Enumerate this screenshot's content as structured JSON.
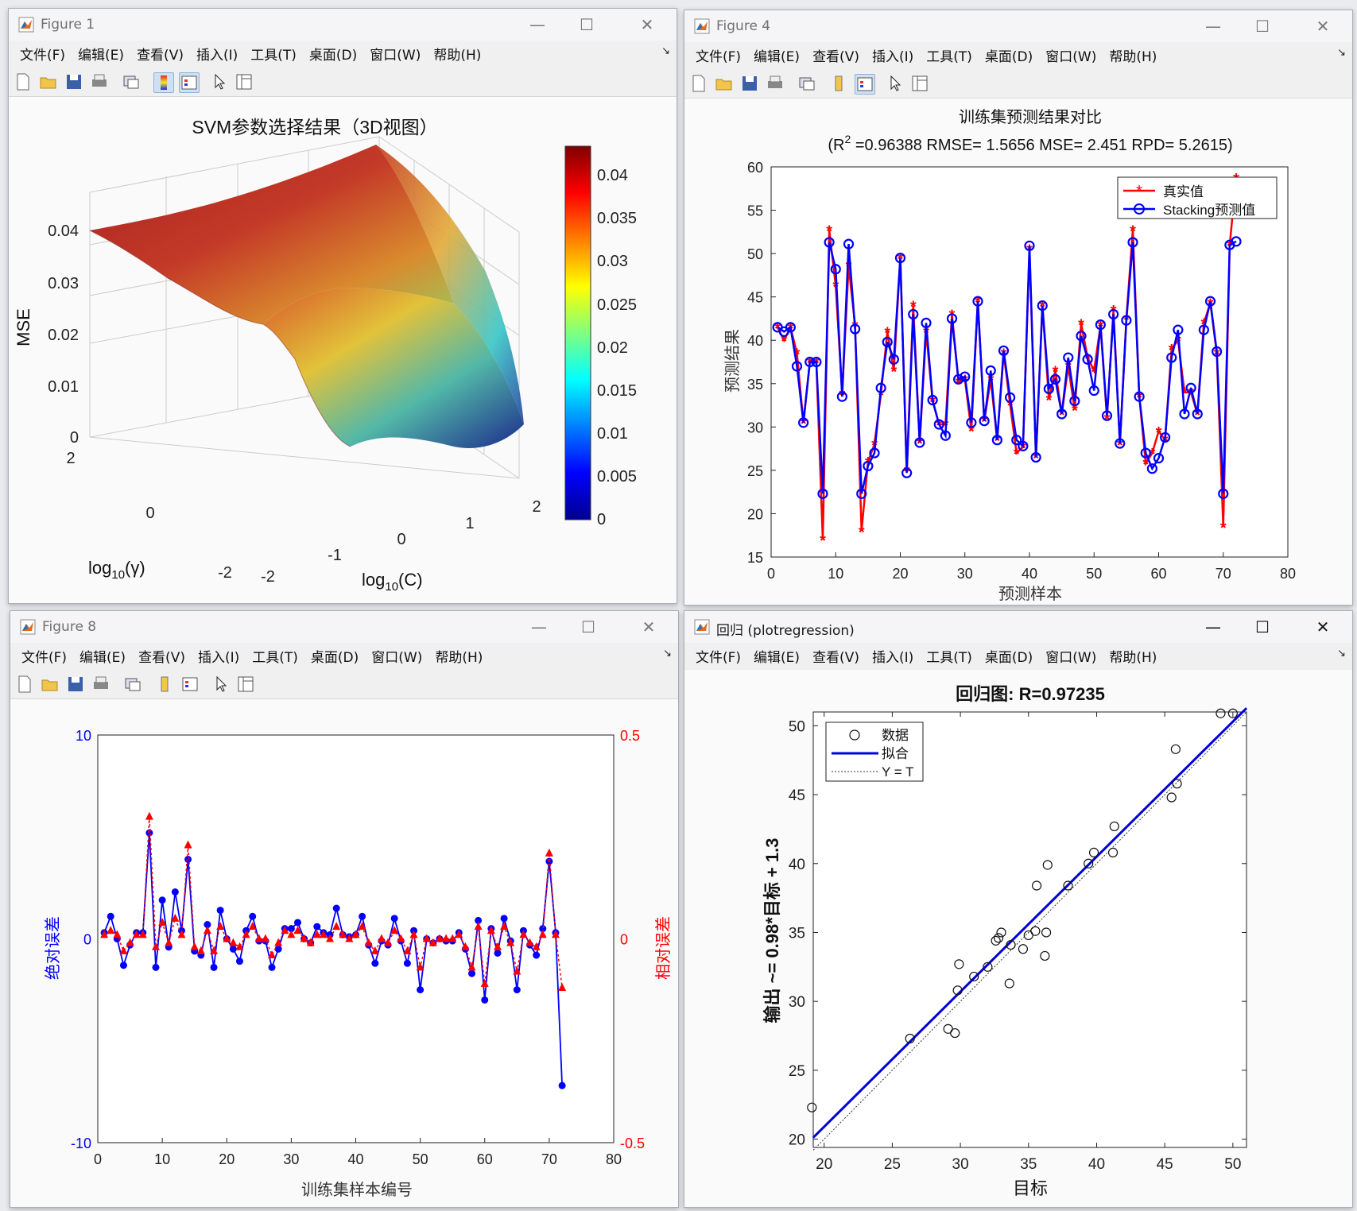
{
  "menu": [
    "文件(F)",
    "编辑(E)",
    "查看(V)",
    "插入(I)",
    "工具(T)",
    "桌面(D)",
    "窗口(W)",
    "帮助(H)"
  ],
  "fig1": {
    "title": "Figure 1",
    "chart_title": "SVM参数选择结果（3D视图）",
    "zlabel": "MSE",
    "xlabel_base": "log",
    "xlabel_sub": "10",
    "xlabel_arg": "(C)",
    "ylabel_base": "log",
    "ylabel_sub": "10",
    "ylabel_arg": "(γ)",
    "z_ticks": [
      "0",
      "0.01",
      "0.02",
      "0.03",
      "0.04"
    ],
    "x_ticks": [
      "-2",
      "-1",
      "0",
      "1",
      "2"
    ],
    "y_ticks": [
      "2",
      "0",
      "-2"
    ],
    "colorbar_ticks": [
      "0.04",
      "0.035",
      "0.03",
      "0.025",
      "0.02",
      "0.015",
      "0.01",
      "0.005",
      "0"
    ]
  },
  "fig4": {
    "title": "Figure 4",
    "chart_title": "训练集预测结果对比",
    "subtitle_pre": "(R",
    "subtitle_sup": "2",
    "subtitle_post": " =0.96388 RMSE= 1.5656 MSE= 2.451 RPD= 5.2615)",
    "xlabel": "预测样本",
    "ylabel": "预测结果",
    "legend": [
      "真实值",
      "Stacking预测值"
    ]
  },
  "fig8": {
    "title": "Figure 8",
    "xlabel": "训练集样本编号",
    "ylabel_left": "绝对误差",
    "ylabel_right": "相对误差"
  },
  "fig_reg": {
    "title": "回归 (plotregression)",
    "chart_title": "回归图: R=0.97235",
    "xlabel": "目标",
    "ylabel": "输出 ~= 0.98*目标 + 1.3",
    "legend": [
      "数据",
      "拟合",
      "Y = T"
    ]
  },
  "chart_data": [
    {
      "type": "surface",
      "title": "SVM参数选择结果（3D视图）",
      "xlabel": "log10(C)",
      "ylabel": "log10(γ)",
      "zlabel": "MSE",
      "xlim": [
        -2,
        2
      ],
      "ylim": [
        -2,
        2
      ],
      "zlim": [
        0,
        0.04
      ],
      "colorbar_range": [
        0,
        0.043
      ]
    },
    {
      "type": "line",
      "title": "训练集预测结果对比",
      "xlabel": "预测样本",
      "ylabel": "预测结果",
      "xlim": [
        0,
        80
      ],
      "ylim": [
        15,
        60
      ],
      "x_ticks": [
        0,
        10,
        20,
        30,
        40,
        50,
        60,
        70,
        80
      ],
      "y_ticks": [
        15,
        20,
        25,
        30,
        35,
        40,
        45,
        50,
        55,
        60
      ],
      "legend_position": "top-right",
      "series": [
        {
          "name": "真实值",
          "color": "#ff0000",
          "marker": "*",
          "values": [
            41.5,
            40.0,
            41.5,
            38.5,
            30.5,
            37.5,
            37.5,
            17.0,
            52.7,
            46.3,
            33.8,
            48.6,
            41.7,
            18.0,
            26.0,
            28.0,
            33.8,
            41.0,
            36.5,
            49.5,
            25.0,
            44.0,
            28.2,
            41.0,
            33.0,
            30.3,
            30.3,
            43.0,
            35.2,
            35.5,
            29.6,
            44.5,
            30.7,
            35.5,
            28.5,
            38.5,
            32.6,
            27.0,
            27.7,
            50.5,
            26.5,
            44.0,
            33.2,
            36.5,
            31.5,
            37.0,
            32.0,
            41.9,
            38.0,
            36.5,
            41.7,
            31.0,
            43.5,
            28.0,
            42.5,
            52.7,
            33.5,
            25.8,
            27.0,
            29.5,
            28.5,
            39.0,
            40.0,
            34.0,
            34.0,
            31.5,
            42.0,
            44.3,
            38.5,
            18.5,
            51.0,
            58.7
          ]
        },
        {
          "name": "Stacking预测值",
          "color": "#0000ff",
          "marker": "o",
          "values": [
            41.5,
            41.0,
            41.5,
            37.0,
            30.5,
            37.5,
            37.5,
            22.3,
            51.3,
            48.2,
            33.5,
            51.1,
            41.3,
            22.3,
            25.5,
            27.0,
            34.5,
            39.8,
            37.8,
            49.5,
            24.7,
            43.0,
            28.2,
            42.0,
            33.1,
            30.3,
            29.0,
            42.5,
            35.5,
            35.8,
            30.5,
            44.5,
            30.7,
            36.5,
            28.5,
            38.8,
            33.4,
            28.5,
            27.8,
            50.9,
            26.5,
            44.0,
            34.4,
            35.5,
            31.5,
            38.0,
            33.0,
            40.5,
            37.8,
            34.2,
            41.8,
            31.3,
            43.0,
            28.1,
            42.3,
            51.3,
            33.5,
            27.0,
            25.2,
            26.4,
            28.8,
            38.0,
            41.2,
            31.5,
            34.5,
            31.5,
            41.2,
            44.5,
            38.7,
            22.3,
            51.0,
            51.4
          ]
        }
      ]
    },
    {
      "type": "line",
      "xlabel": "训练集样本编号",
      "ylabel": "绝对误差",
      "ylabel_right": "相对误差",
      "xlim": [
        0,
        80
      ],
      "ylim": [
        -10,
        10
      ],
      "ylim_right": [
        -0.5,
        0.5
      ],
      "x_ticks": [
        0,
        10,
        20,
        30,
        40,
        50,
        60,
        70,
        80
      ],
      "y_ticks": [
        -10,
        0,
        10
      ],
      "y_ticks_right": [
        -0.5,
        0,
        0.5
      ],
      "series": [
        {
          "axis": "left",
          "color": "#0000ff",
          "marker": "o",
          "values": [
            0.3,
            1.1,
            0,
            -1.3,
            -0.3,
            0.3,
            0.3,
            5.2,
            -1.4,
            1.9,
            -0.4,
            2.3,
            0.4,
            3.9,
            -0.6,
            -0.8,
            0.7,
            -1.4,
            1.4,
            0,
            -0.5,
            -1.1,
            0.4,
            1.1,
            -0.1,
            -0.1,
            -1.4,
            -0.5,
            0.5,
            0.5,
            0.8,
            0,
            -0.2,
            0.6,
            0.3,
            0.2,
            1.5,
            0.2,
            0.1,
            0.2,
            1.1,
            -0.3,
            -1.2,
            -0.1,
            -0.3,
            1.0,
            -0.1,
            -1.2,
            0.4,
            -2.5,
            0,
            -0.2,
            0,
            -0.1,
            -0.1,
            0.3,
            -0.5,
            -1.7,
            0.9,
            -3.0,
            0.5,
            -0.7,
            1.0,
            -0.1,
            -2.5,
            0.4,
            -0.3,
            -0.8,
            0.5,
            3.8,
            0.3,
            -7.2
          ]
        },
        {
          "axis": "right",
          "color": "#ff0000",
          "marker": "^",
          "values": [
            0.01,
            0.02,
            0.01,
            -0.03,
            -0.01,
            0.01,
            0.01,
            0.3,
            -0.02,
            0.04,
            -0.01,
            0.05,
            0.01,
            0.23,
            -0.02,
            -0.03,
            0.02,
            -0.03,
            0.03,
            0,
            -0.01,
            -0.02,
            0.01,
            0.03,
            0,
            0,
            -0.04,
            -0.01,
            0.02,
            0.01,
            0.02,
            0,
            -0.01,
            0.01,
            0.01,
            0,
            0.03,
            0.01,
            0,
            0.01,
            0.03,
            -0.01,
            -0.03,
            0,
            -0.01,
            0.02,
            0,
            -0.03,
            0.01,
            -0.07,
            0,
            -0.01,
            0,
            0,
            0,
            0.01,
            -0.02,
            -0.07,
            0.03,
            -0.11,
            0.02,
            -0.02,
            0.03,
            -0.01,
            -0.08,
            0.01,
            -0.01,
            -0.02,
            0.01,
            0.21,
            0.01,
            -0.12
          ]
        }
      ]
    },
    {
      "type": "scatter",
      "title": "回归图: R=0.97235",
      "xlabel": "目标",
      "ylabel": "输出 ~= 0.98*目标 + 1.3",
      "xlim": [
        19.2,
        51
      ],
      "ylim": [
        19.4,
        51
      ],
      "x_ticks": [
        20,
        25,
        30,
        35,
        40,
        45,
        50
      ],
      "y_ticks": [
        20,
        25,
        30,
        35,
        40,
        45,
        50
      ],
      "legend_position": "top-left",
      "fit": {
        "slope": 0.98,
        "intercept": 1.3,
        "color": "#0000dd"
      },
      "identity_line": true,
      "points": [
        [
          19.1,
          22.3
        ],
        [
          26.3,
          27.3
        ],
        [
          29.1,
          28.0
        ],
        [
          29.6,
          27.7
        ],
        [
          29.8,
          30.8
        ],
        [
          29.9,
          32.7
        ],
        [
          31.0,
          31.8
        ],
        [
          32.0,
          32.5
        ],
        [
          32.6,
          34.4
        ],
        [
          32.8,
          34.6
        ],
        [
          33.0,
          35.0
        ],
        [
          33.6,
          31.3
        ],
        [
          33.7,
          34.1
        ],
        [
          34.6,
          33.8
        ],
        [
          35.0,
          34.8
        ],
        [
          35.5,
          35.1
        ],
        [
          35.6,
          38.4
        ],
        [
          36.2,
          33.3
        ],
        [
          36.3,
          35.0
        ],
        [
          36.4,
          39.9
        ],
        [
          37.9,
          38.4
        ],
        [
          39.4,
          40.0
        ],
        [
          39.8,
          40.8
        ],
        [
          41.2,
          40.8
        ],
        [
          41.3,
          42.7
        ],
        [
          45.5,
          44.8
        ],
        [
          45.9,
          45.8
        ],
        [
          45.8,
          48.3
        ],
        [
          49.1,
          50.9
        ],
        [
          50.0,
          50.9
        ]
      ]
    }
  ]
}
